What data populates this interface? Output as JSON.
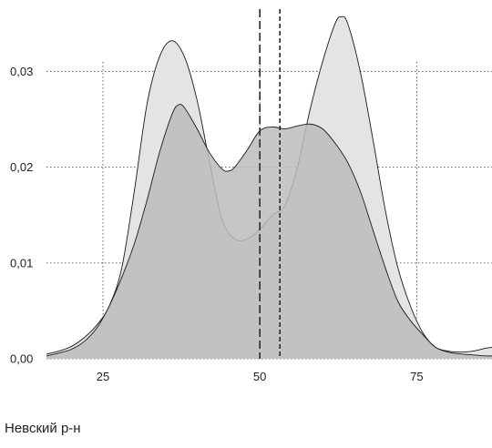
{
  "panel_label": "Невский р-н",
  "chart_data": {
    "type": "area",
    "title": "",
    "xlabel": "",
    "ylabel": "",
    "xlim": [
      16,
      87
    ],
    "ylim": [
      0,
      0.0365
    ],
    "grid": true,
    "x_ticks": [
      {
        "value": 25,
        "label": "25"
      },
      {
        "value": 50,
        "label": "50"
      },
      {
        "value": 75,
        "label": "75"
      }
    ],
    "y_ticks": [
      {
        "value": 0.0,
        "label": "0,00"
      },
      {
        "value": 0.01,
        "label": "0,01"
      },
      {
        "value": 0.02,
        "label": "0,02"
      },
      {
        "value": 0.03,
        "label": "0,03"
      }
    ],
    "series": [
      {
        "fill": "#e4e4e4",
        "x": [
          16,
          18,
          20,
          22,
          24,
          26,
          28,
          30,
          32,
          34,
          36,
          38,
          40,
          42,
          44,
          46,
          48,
          50,
          52,
          54,
          56,
          58,
          60,
          62,
          63,
          64,
          66,
          68,
          70,
          72,
          74,
          76,
          78,
          80,
          82,
          84,
          86,
          87
        ],
        "y": [
          0.0005,
          0.0008,
          0.0013,
          0.0022,
          0.0035,
          0.0055,
          0.0095,
          0.0175,
          0.0265,
          0.0315,
          0.0332,
          0.0315,
          0.027,
          0.0205,
          0.0145,
          0.0125,
          0.0125,
          0.0135,
          0.015,
          0.016,
          0.02,
          0.026,
          0.031,
          0.035,
          0.0357,
          0.035,
          0.03,
          0.023,
          0.0155,
          0.0095,
          0.0055,
          0.0027,
          0.0012,
          0.0008,
          0.0007,
          0.0008,
          0.0011,
          0.0012
        ]
      },
      {
        "fill": "#bcbcbc",
        "x": [
          16,
          18,
          20,
          22,
          24,
          26,
          28,
          30,
          32,
          34,
          36,
          37,
          38,
          40,
          42,
          44,
          45,
          46,
          48,
          50,
          52,
          54,
          56,
          58,
          60,
          62,
          64,
          66,
          68,
          70,
          72,
          74,
          76,
          78,
          80,
          82,
          84,
          86,
          87
        ],
        "y": [
          0.0003,
          0.0006,
          0.001,
          0.0018,
          0.0032,
          0.0055,
          0.0085,
          0.012,
          0.0165,
          0.0215,
          0.0255,
          0.0265,
          0.0262,
          0.024,
          0.0215,
          0.0198,
          0.0196,
          0.02,
          0.0218,
          0.0238,
          0.0242,
          0.024,
          0.0243,
          0.0245,
          0.024,
          0.0225,
          0.0205,
          0.0175,
          0.0135,
          0.0095,
          0.006,
          0.004,
          0.0025,
          0.0012,
          0.0007,
          0.0005,
          0.0004,
          0.0003,
          0.0003
        ]
      }
    ],
    "vertical_lines": [
      {
        "x": 50,
        "style": "long-dash"
      },
      {
        "x": 53.2,
        "style": "short-dash"
      }
    ]
  }
}
